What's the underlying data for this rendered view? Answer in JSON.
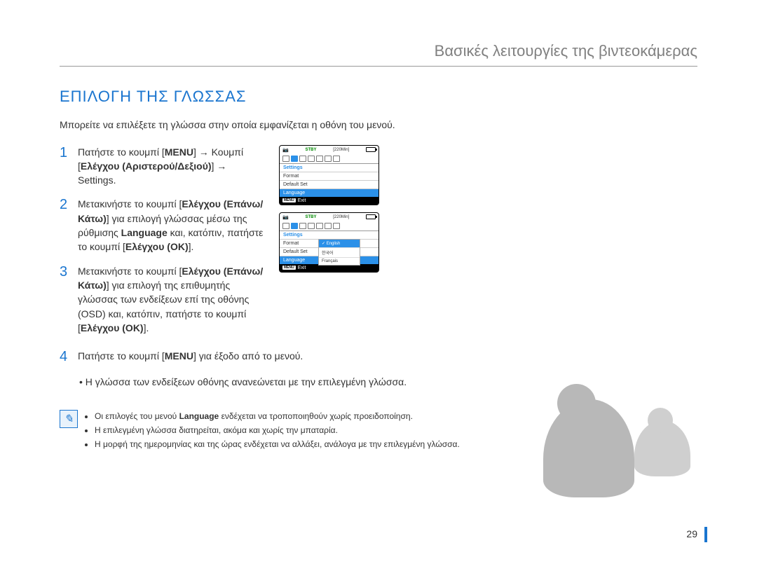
{
  "chapter_title": "Βασικές λειτουργίες της βιντεοκάμερας",
  "section_title": "ΕΠΙΛΟΓΗ ΤΗΣ ΓΛΩΣΣΑΣ",
  "intro": "Μπορείτε να επιλέξετε τη γλώσσα στην οποία εμφανίζεται η οθόνη του μενού.",
  "steps": {
    "s1_a": "Πατήστε το κουμπί [",
    "s1_menu": "MENU",
    "s1_b": "] ",
    "s1_arrow": "→",
    "s1_c": " Κουμπί [",
    "s1_ctrl": "Ελέγχου (Αριστερού/Δεξιού)",
    "s1_d": "] ",
    "s1_e": " Settings.",
    "s2_a": "Μετακινήστε το κουμπί [",
    "s2_ctrl": "Ελέγχου (Επάνω/Κάτω)",
    "s2_b": "] για επιλογή γλώσσας μέσω της ρύθμισης ",
    "s2_lang": "Language",
    "s2_c": " και, κατόπιν, πατήστε το κουμπί [",
    "s2_ok": "Ελέγχου (OK)",
    "s2_d": "].",
    "s3_a": "Μετακινήστε το κουμπί [",
    "s3_ctrl": "Ελέγχου (Επάνω/Κάτω)",
    "s3_b": "] για επιλογή της επιθυμητής γλώσσας των ενδείξεων επί της οθόνης (OSD) και, κατόπιν, πατήστε το κουμπί [",
    "s3_ok": "Ελέγχου (OK)",
    "s3_c": "].",
    "s4_a": "Πατήστε το κουμπί [",
    "s4_menu": "MENU",
    "s4_b": "] για έξοδο από το μενού.",
    "s4_bullet": "Η γλώσσα των ενδείξεων οθόνης ανανεώνεται με την επιλεγμένη γλώσσα."
  },
  "notes": {
    "n1_a": "Οι επιλογές του μενού ",
    "n1_lang": "Language",
    "n1_b": " ενδέχεται να τροποποιηθούν χωρίς προειδοποίηση.",
    "n2": "Η επιλεγμένη γλώσσα διατηρείται, ακόμα και χωρίς την μπαταρία.",
    "n3": "Η μορφή της ημερομηνίας και της ώρας ενδέχεται να αλλάξει, ανάλογα με την επιλεγμένη γλώσσα."
  },
  "screen": {
    "stby": "STBY",
    "mins": "[220Min]",
    "settings": "Settings",
    "format": "Format",
    "default_set": "Default Set",
    "language": "Language",
    "exit": "Exit",
    "menu_badge": "MENU",
    "popup": {
      "english": "English",
      "korean": "한국어",
      "francais": "Français"
    }
  },
  "page_number": "29",
  "colors": {
    "accent": "#1a75cf",
    "green": "#008800",
    "grey_silhouette": "#b8b8b8"
  }
}
